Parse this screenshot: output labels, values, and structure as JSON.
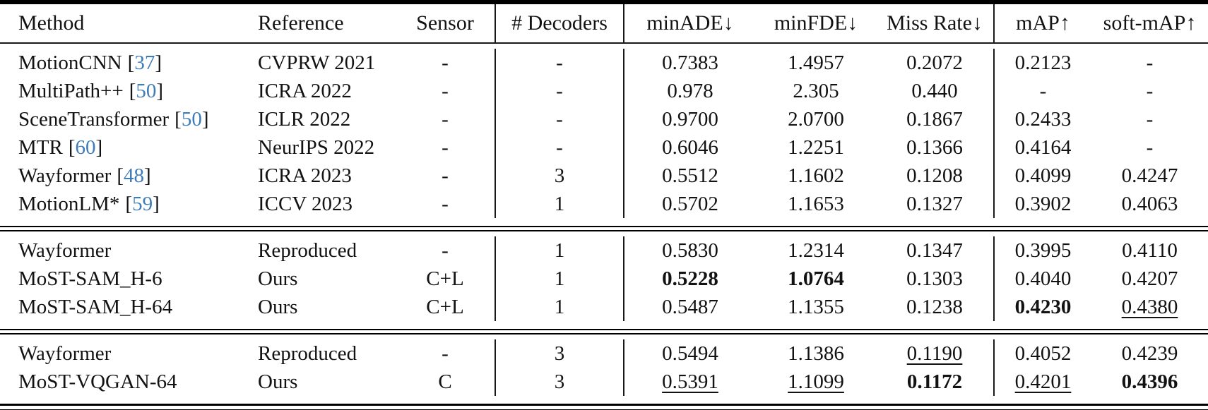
{
  "table": {
    "cite_open": "[",
    "cite_close": "]",
    "header": {
      "method": "Method",
      "reference": "Reference",
      "sensor": "Sensor",
      "decoders": "# Decoders",
      "minade": "minADE↓",
      "minfde": "minFDE↓",
      "missrate": "Miss Rate↓",
      "map": "mAP↑",
      "softmap": "soft-mAP↑"
    },
    "sections": [
      {
        "rows": [
          {
            "method": "MotionCNN",
            "cite": "37",
            "reference": "CVPRW 2021",
            "sensor": "-",
            "decoders": "-",
            "minade": "0.7383",
            "minfde": "1.4957",
            "missrate": "0.2072",
            "map": "0.2123",
            "softmap": "-"
          },
          {
            "method": "MultiPath++",
            "cite": "50",
            "reference": "ICRA 2022",
            "sensor": "-",
            "decoders": "-",
            "minade": "0.978",
            "minfde": "2.305",
            "missrate": "0.440",
            "map": "-",
            "softmap": "-"
          },
          {
            "method": "SceneTransformer",
            "cite": "50",
            "reference": "ICLR 2022",
            "sensor": "-",
            "decoders": "-",
            "minade": "0.9700",
            "minfde": "2.0700",
            "missrate": "0.1867",
            "map": "0.2433",
            "softmap": "-"
          },
          {
            "method": "MTR",
            "cite": "60",
            "reference": "NeurIPS 2022",
            "sensor": "-",
            "decoders": "-",
            "minade": "0.6046",
            "minfde": "1.2251",
            "missrate": "0.1366",
            "map": "0.4164",
            "softmap": "-"
          },
          {
            "method": "Wayformer",
            "cite": "48",
            "reference": "ICRA 2023",
            "sensor": "-",
            "decoders": "3",
            "minade": "0.5512",
            "minfde": "1.1602",
            "missrate": "0.1208",
            "map": "0.4099",
            "softmap": "0.4247"
          },
          {
            "method": "MotionLM*",
            "cite": "59",
            "reference": "ICCV 2023",
            "sensor": "-",
            "decoders": "1",
            "minade": "0.5702",
            "minfde": "1.1653",
            "missrate": "0.1327",
            "map": "0.3902",
            "softmap": "0.4063"
          }
        ]
      },
      {
        "rows": [
          {
            "method": "Wayformer",
            "reference": "Reproduced",
            "sensor": "-",
            "decoders": "1",
            "minade": "0.5830",
            "minfde": "1.2314",
            "missrate": "0.1347",
            "map": "0.3995",
            "softmap": "0.4110"
          },
          {
            "method": "MoST-SAM_H-6",
            "reference": "Ours",
            "sensor": "C+L",
            "decoders": "1",
            "minade": "0.5228",
            "minfde": "1.0764",
            "missrate": "0.1303",
            "map": "0.4040",
            "softmap": "0.4207"
          },
          {
            "method": "MoST-SAM_H-64",
            "reference": "Ours",
            "sensor": "C+L",
            "decoders": "1",
            "minade": "0.5487",
            "minfde": "1.1355",
            "missrate": "0.1238",
            "map": "0.4230",
            "softmap": "0.4380"
          }
        ]
      },
      {
        "rows": [
          {
            "method": "Wayformer",
            "reference": "Reproduced",
            "sensor": "-",
            "decoders": "3",
            "minade": "0.5494",
            "minfde": "1.1386",
            "missrate": "0.1190",
            "map": "0.4052",
            "softmap": "0.4239"
          },
          {
            "method": "MoST-VQGAN-64",
            "reference": "Ours",
            "sensor": "C",
            "decoders": "3",
            "minade": "0.5391",
            "minfde": "1.1099",
            "missrate": "0.1172",
            "map": "0.4201",
            "softmap": "0.4396"
          }
        ]
      }
    ]
  },
  "colors": {
    "citation_blue": "#3e7cb8",
    "text": "#121212",
    "rule": "#000000"
  }
}
